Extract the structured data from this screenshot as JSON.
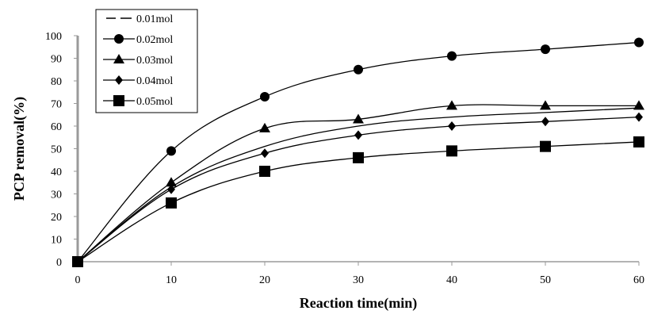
{
  "chart_data": {
    "type": "line",
    "title": "",
    "xlabel": "Reaction time(min)",
    "ylabel": "PCP removal(%)",
    "x": [
      0,
      10,
      20,
      30,
      40,
      50,
      60
    ],
    "xlim": [
      0,
      60
    ],
    "ylim": [
      0,
      100
    ],
    "xticks": [
      "0",
      "10",
      "20",
      "30",
      "40",
      "50",
      "60"
    ],
    "yticks": [
      "0",
      "10",
      "20",
      "30",
      "40",
      "50",
      "60",
      "70",
      "80",
      "90",
      "100"
    ],
    "grid": false,
    "legend_position": "top-left",
    "series": [
      {
        "name": "0.01mol",
        "marker": "dash",
        "color": "#000000",
        "values": [
          0,
          33,
          51,
          60,
          64,
          66,
          68
        ]
      },
      {
        "name": "0.02mol",
        "marker": "circle",
        "color": "#000000",
        "values": [
          0,
          49,
          73,
          85,
          91,
          94,
          97
        ]
      },
      {
        "name": "0.03mol",
        "marker": "triangle",
        "color": "#000000",
        "values": [
          0,
          35,
          59,
          63,
          69,
          69,
          69
        ]
      },
      {
        "name": "0.04mol",
        "marker": "diamond",
        "color": "#000000",
        "values": [
          0,
          32,
          48,
          56,
          60,
          62,
          64
        ]
      },
      {
        "name": "0.05mol",
        "marker": "square",
        "color": "#000000",
        "values": [
          0,
          26,
          40,
          46,
          49,
          51,
          53
        ]
      }
    ]
  }
}
